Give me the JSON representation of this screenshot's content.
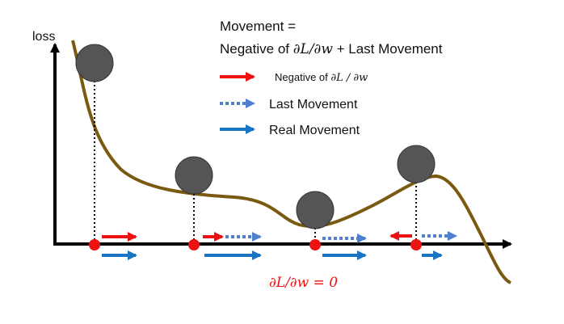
{
  "axis": {
    "y_label": "loss"
  },
  "title": {
    "line1": "Movement =",
    "line2_prefix": "Negative of ",
    "line2_math": "∂L/∂w",
    "line2_suffix": " + Last Movement"
  },
  "legend": [
    {
      "prefix": "Negative of ",
      "math": "∂L / ∂w",
      "style": "solid",
      "color": "#ee1111"
    },
    {
      "label": "Last Movement",
      "style": "dotted",
      "color": "#4f7fcf"
    },
    {
      "label": "Real Movement",
      "style": "solid",
      "color": "#1a74c4"
    }
  ],
  "bottom_annotation": "∂L/∂w = 0",
  "colors": {
    "curve": "#7a5a10",
    "ball": "#555555",
    "point": "#ee1111",
    "negative_gradient": "#ee1111",
    "last_movement": "#4f7fcf",
    "real_movement": "#1a74c4"
  }
}
